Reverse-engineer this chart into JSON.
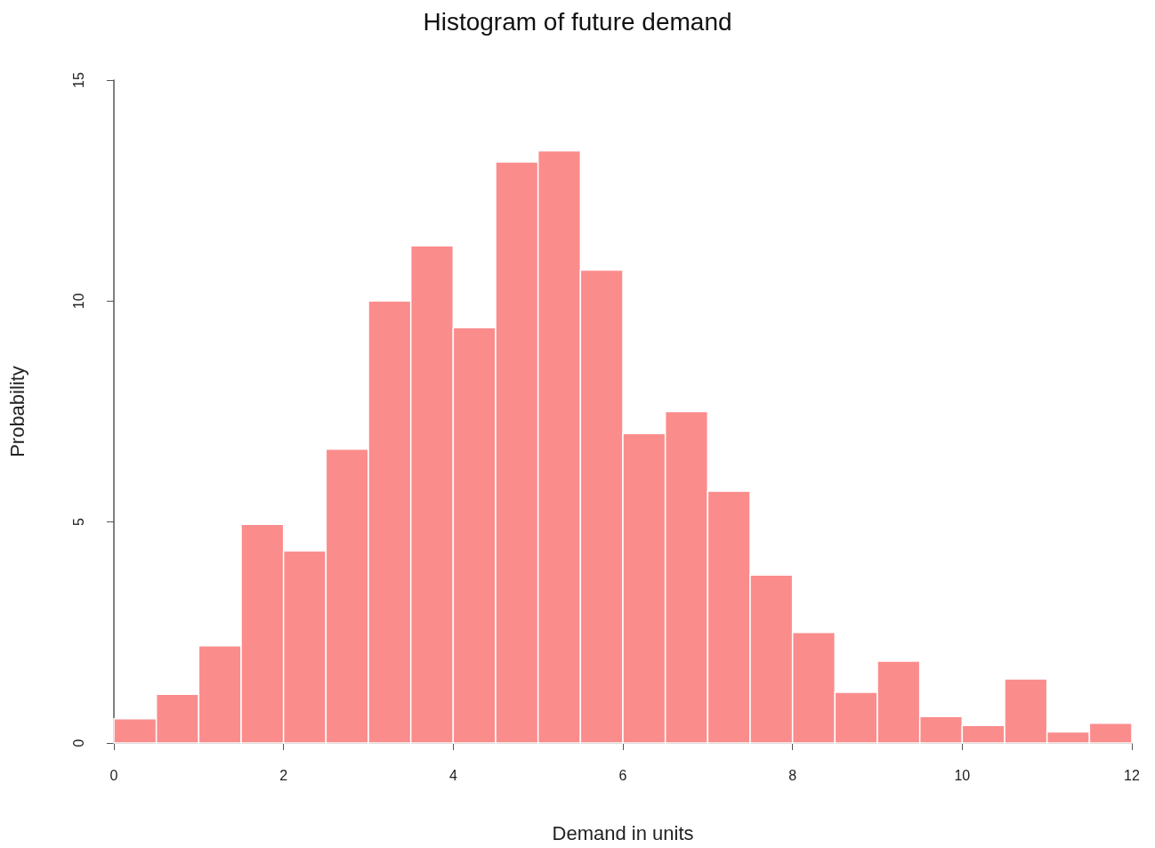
{
  "chart_data": {
    "type": "histogram",
    "title": "Histogram of future demand",
    "xlabel": "Demand in units",
    "ylabel": "Probability",
    "bins": [
      0,
      0.5,
      1,
      1.5,
      2,
      2.5,
      3,
      3.5,
      4,
      4.5,
      5,
      5.5,
      6,
      6.5,
      7,
      7.5,
      8,
      8.5,
      9,
      9.5,
      10,
      10.5,
      11,
      11.5,
      12
    ],
    "values": [
      0.55,
      1.1,
      2.2,
      4.95,
      4.35,
      6.65,
      10,
      11.25,
      9.4,
      13.15,
      13.4,
      10.7,
      7,
      7.5,
      5.7,
      3.8,
      2.5,
      1.15,
      1.85,
      0.6,
      0.4,
      1.45,
      0.25,
      0.45
    ],
    "color": "#fb8c8c",
    "xlim": [
      0,
      12
    ],
    "xticks": [
      0,
      2,
      4,
      6,
      8,
      10,
      12
    ],
    "ylim": [
      0,
      15
    ],
    "yticks": [
      0,
      5,
      10,
      15
    ]
  }
}
